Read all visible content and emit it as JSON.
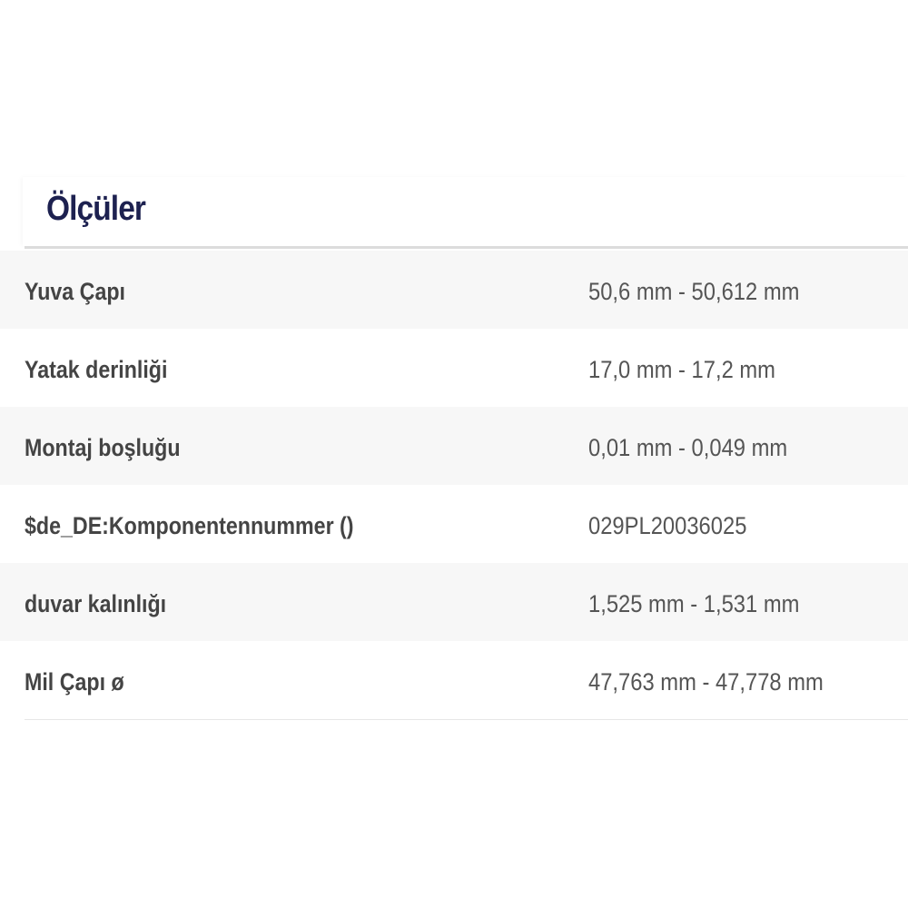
{
  "title": "Ölçüler",
  "rows": [
    {
      "label": "Yuva Çapı",
      "value": "50,6 mm - 50,612 mm"
    },
    {
      "label": "Yatak derinliği",
      "value": "17,0 mm - 17,2 mm"
    },
    {
      "label": "Montaj boşluğu",
      "value": "0,01 mm - 0,049 mm"
    },
    {
      "label": "$de_DE:Komponentennummer ()",
      "value": "029PL20036025"
    },
    {
      "label": "duvar kalınlığı",
      "value": "1,525 mm - 1,531 mm"
    },
    {
      "label": "Mil Çapı ø",
      "value": "47,763 mm - 47,778 mm"
    }
  ]
}
